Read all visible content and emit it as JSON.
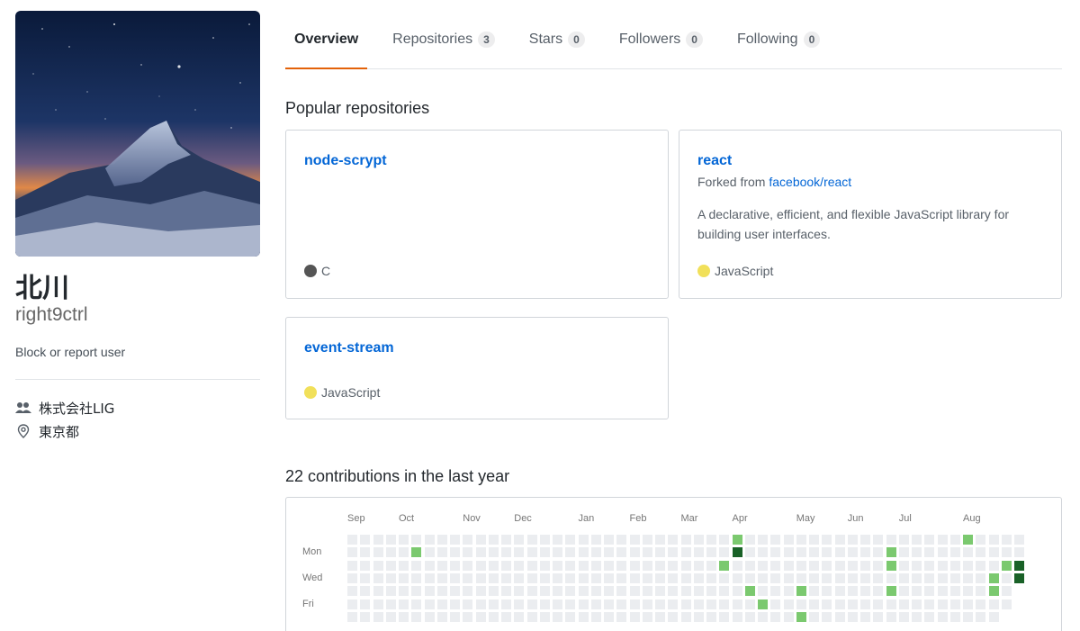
{
  "profile": {
    "full_name": "北川",
    "username": "right9ctrl",
    "block_link": "Block or report user",
    "organization": "株式会社LIG",
    "location": "東京都"
  },
  "tabs": [
    {
      "label": "Overview",
      "count": null
    },
    {
      "label": "Repositories",
      "count": "3"
    },
    {
      "label": "Stars",
      "count": "0"
    },
    {
      "label": "Followers",
      "count": "0"
    },
    {
      "label": "Following",
      "count": "0"
    }
  ],
  "popular": {
    "title": "Popular repositories",
    "repos": [
      {
        "name": "node-scrypt",
        "language": "C",
        "lang_color": "#555555"
      },
      {
        "name": "react",
        "forked_prefix": "Forked from",
        "forked_from": "facebook/react",
        "description": "A declarative, efficient, and flexible JavaScript library for building user interfaces.",
        "language": "JavaScript",
        "lang_color": "#f1e05a"
      },
      {
        "name": "event-stream",
        "language": "JavaScript",
        "lang_color": "#f1e05a"
      }
    ]
  },
  "contributions": {
    "title": "22 contributions in the last year",
    "months": [
      "Sep",
      "Oct",
      "Nov",
      "Dec",
      "Jan",
      "Feb",
      "Mar",
      "Apr",
      "May",
      "Jun",
      "Jul",
      "Aug"
    ],
    "days": [
      "Mon",
      "Wed",
      "Fri"
    ],
    "colors": {
      "empty": "#ebedf0",
      "l1": "#7bc96f",
      "l3": "#196127"
    }
  }
}
